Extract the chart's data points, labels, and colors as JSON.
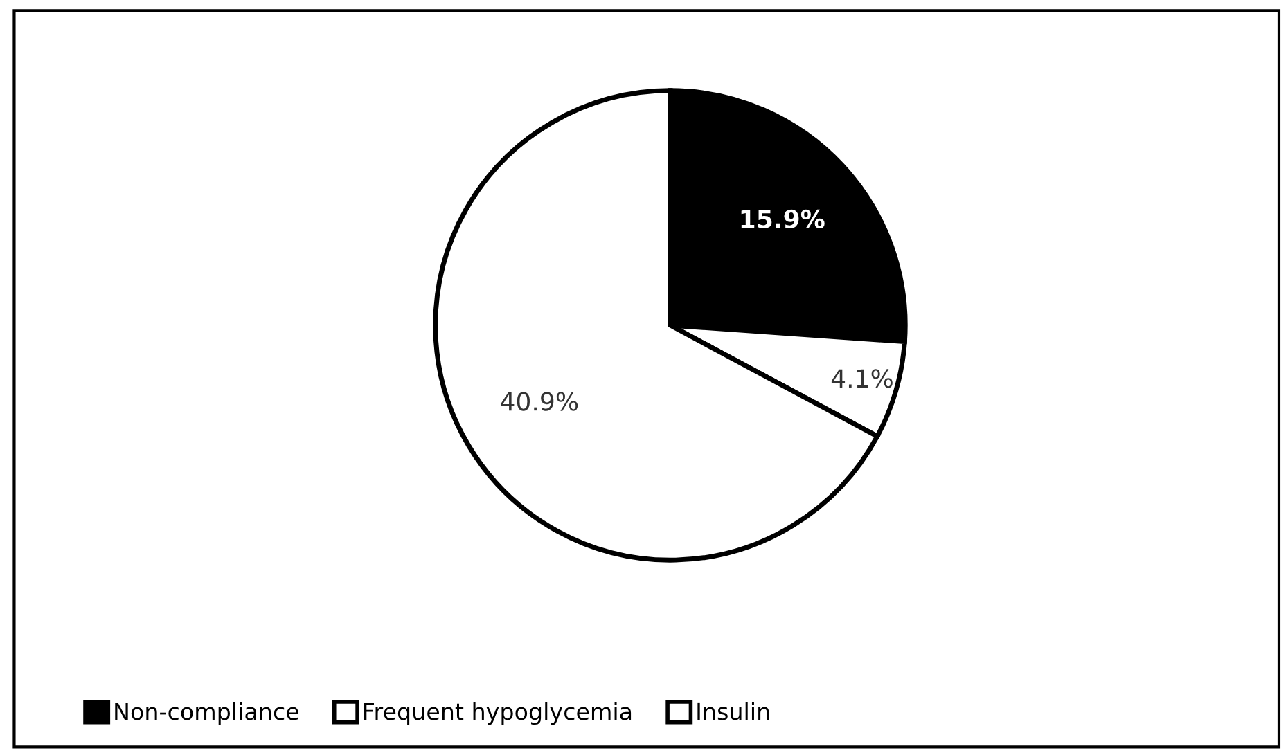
{
  "chart_data": {
    "type": "pie",
    "categories": [
      "Non-compliance",
      "Frequent hypoglycemia",
      "Insulin"
    ],
    "values": [
      15.9,
      4.1,
      40.9
    ],
    "colors": [
      "#000000",
      "#ffffff",
      "#ffffff"
    ],
    "value_labels": [
      "15.9%",
      "4.1%",
      "40.9%"
    ],
    "legend": "bottom left"
  }
}
